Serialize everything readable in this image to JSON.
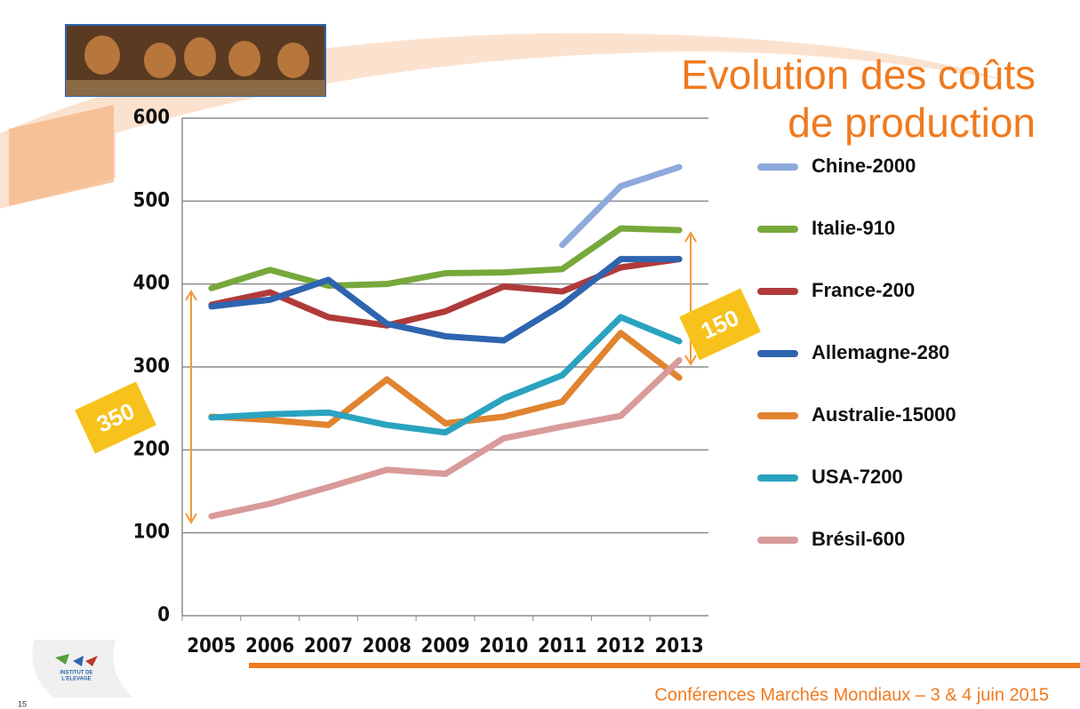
{
  "chart_data": {
    "type": "line",
    "title": [
      "Evolution des coûts",
      "de production"
    ],
    "categories": [
      "2005",
      "2006",
      "2007",
      "2008",
      "2009",
      "2010",
      "2011",
      "2012",
      "2013"
    ],
    "series": [
      {
        "name": "Chine-2000",
        "color": "#8eaadb",
        "values": [
          null,
          null,
          null,
          null,
          null,
          null,
          447,
          518,
          541
        ]
      },
      {
        "name": "Italie-910",
        "color": "#77a83b",
        "values": [
          395,
          417,
          398,
          400,
          413,
          414,
          418,
          467,
          465
        ]
      },
      {
        "name": "France-200",
        "color": "#b03a3a",
        "values": [
          375,
          390,
          360,
          350,
          367,
          397,
          391,
          420,
          430
        ]
      },
      {
        "name": "Allemagne-280",
        "color": "#2e64b0",
        "values": [
          373,
          381,
          405,
          352,
          337,
          332,
          375,
          430,
          430
        ]
      },
      {
        "name": "Australie-15000",
        "color": "#e0842f",
        "values": [
          240,
          236,
          230,
          285,
          232,
          240,
          258,
          341,
          287
        ]
      },
      {
        "name": "USA-7200",
        "color": "#2aa3bf",
        "values": [
          239,
          243,
          245,
          230,
          221,
          262,
          290,
          360,
          331
        ]
      },
      {
        "name": "Brésil-600",
        "color": "#d99a9a",
        "values": [
          120,
          135,
          155,
          176,
          171,
          214,
          228,
          241,
          308
        ]
      }
    ],
    "ylim": [
      0,
      600
    ],
    "yticks": [
      0,
      100,
      200,
      300,
      400,
      500,
      600
    ],
    "grid": true,
    "annotations": [
      "350",
      "150"
    ]
  },
  "footer": "Conférences Marchés Mondiaux – 3 & 4 juin 2015",
  "page_number": "15",
  "logo_text": [
    "INSTITUT DE",
    "L'ELEVAGE"
  ]
}
